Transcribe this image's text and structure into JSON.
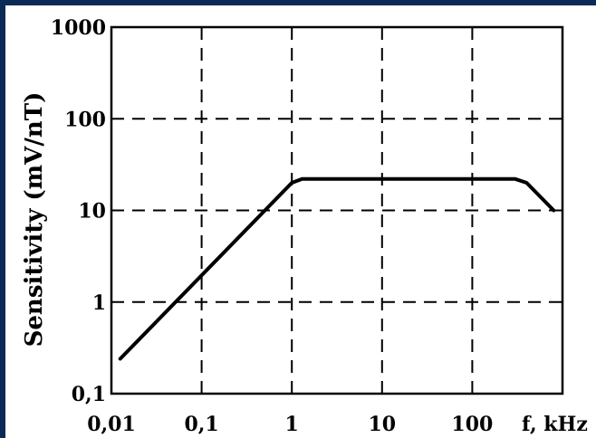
{
  "chart_data": {
    "type": "line",
    "title": "",
    "xlabel": "f, kHz",
    "ylabel": "Sensitivity (mV/nT)",
    "x_scale": "log",
    "y_scale": "log",
    "xlim": [
      0.01,
      1000
    ],
    "ylim": [
      0.1,
      1000
    ],
    "x_ticks": [
      {
        "value": 0.01,
        "label": "0,01"
      },
      {
        "value": 0.1,
        "label": "0,1"
      },
      {
        "value": 1,
        "label": "1"
      },
      {
        "value": 10,
        "label": "10"
      },
      {
        "value": 100,
        "label": "100"
      }
    ],
    "y_ticks": [
      {
        "value": 0.1,
        "label": "0,1"
      },
      {
        "value": 1,
        "label": "1"
      },
      {
        "value": 10,
        "label": "10"
      },
      {
        "value": 100,
        "label": "100"
      },
      {
        "value": 1000,
        "label": "1000"
      }
    ],
    "grid": true,
    "series": [
      {
        "x": [
          0.0125,
          1.0,
          1.3,
          300,
          400,
          800
        ],
        "y": [
          0.24,
          20,
          22,
          22,
          20,
          10
        ]
      }
    ]
  }
}
